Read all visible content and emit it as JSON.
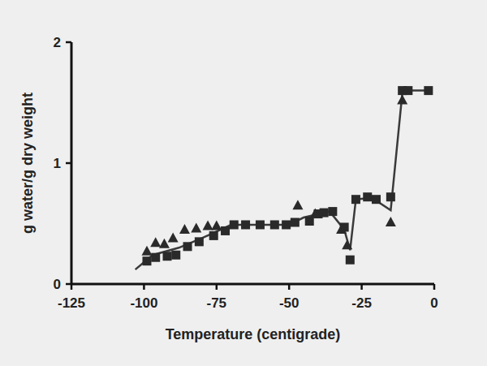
{
  "chart_data": {
    "type": "scatter",
    "x_label": "Temperature (centigrade)",
    "y_label": "g water/g dry weight",
    "xlim": [
      -125,
      0
    ],
    "ylim": [
      0,
      2
    ],
    "xticks": [
      -125,
      -100,
      -75,
      -50,
      -25,
      0
    ],
    "yticks": [
      0,
      1,
      2
    ],
    "grid": false,
    "series": [
      {
        "type": "line",
        "line_style": "solid",
        "color": "#3a3a3a",
        "x": [
          -103,
          -97,
          -88,
          -80,
          -70,
          -50,
          -45,
          -36,
          -31,
          -29,
          -27,
          -23,
          -20,
          -15,
          -11,
          -10,
          -2
        ],
        "values": [
          0.12,
          0.24,
          0.3,
          0.38,
          0.49,
          0.49,
          0.55,
          0.6,
          0.45,
          0.28,
          0.7,
          0.71,
          0.69,
          0.61,
          1.58,
          1.6,
          1.6
        ]
      },
      {
        "type": "scatter",
        "marker": "square",
        "color": "#2a2a2a",
        "x": [
          -99,
          -96,
          -92,
          -89,
          -85,
          -81,
          -76,
          -72,
          -69,
          -65,
          -60,
          -55,
          -51,
          -48,
          -43,
          -40,
          -38,
          -35,
          -31,
          -29,
          -27,
          -23,
          -20,
          -15,
          -11,
          -9,
          -2
        ],
        "values": [
          0.19,
          0.22,
          0.23,
          0.24,
          0.31,
          0.35,
          0.4,
          0.44,
          0.49,
          0.49,
          0.49,
          0.49,
          0.49,
          0.51,
          0.52,
          0.58,
          0.59,
          0.6,
          0.47,
          0.2,
          0.7,
          0.72,
          0.7,
          0.72,
          1.6,
          1.6,
          1.6
        ]
      },
      {
        "type": "scatter",
        "marker": "triangle",
        "color": "#2a2a2a",
        "x": [
          -99,
          -96,
          -93,
          -90,
          -86,
          -82,
          -78,
          -75,
          -47,
          -41,
          -32,
          -30,
          -15,
          -11
        ],
        "values": [
          0.27,
          0.34,
          0.33,
          0.38,
          0.45,
          0.46,
          0.48,
          0.48,
          0.65,
          0.58,
          0.45,
          0.32,
          0.51,
          1.52
        ]
      }
    ]
  }
}
